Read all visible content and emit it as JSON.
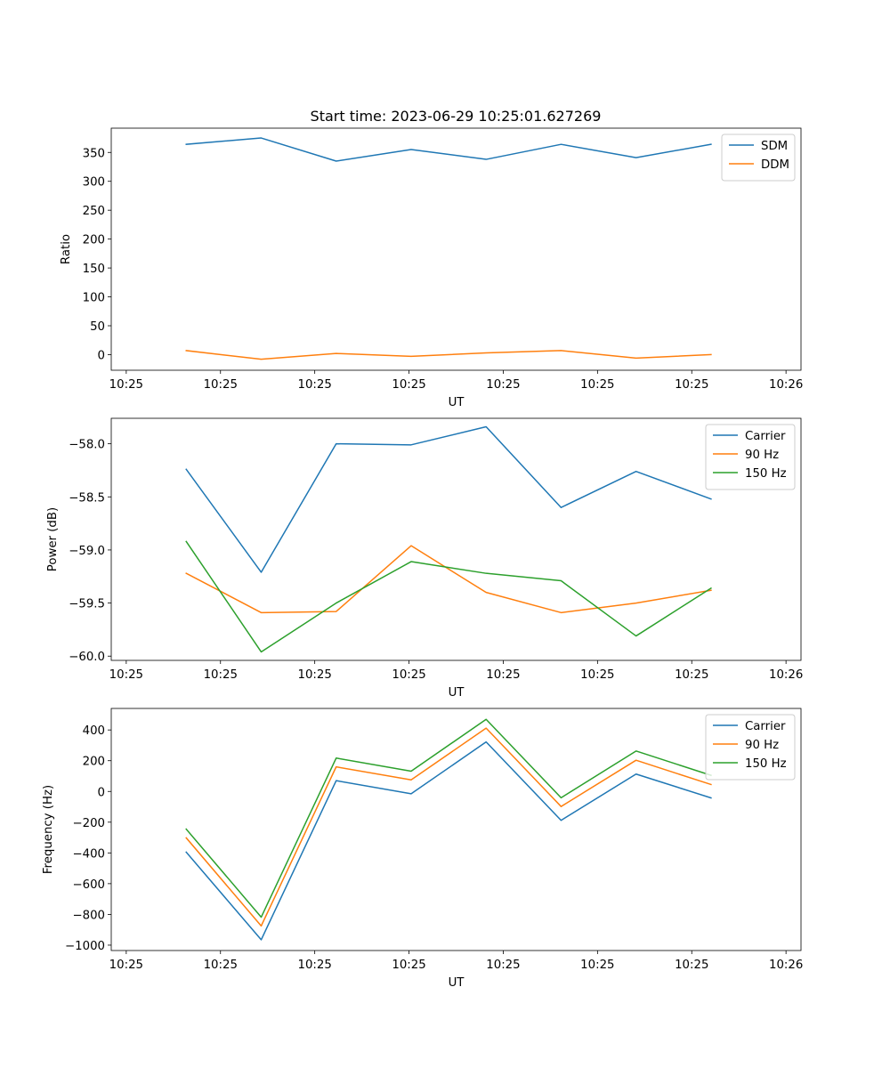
{
  "title": "Start time: 2023-06-29 10:25:01.627269",
  "colors": {
    "c0": "#1f77b4",
    "c1": "#ff7f0e",
    "c2": "#2ca02c"
  },
  "chart_data": [
    {
      "type": "line",
      "title": "Start time: 2023-06-29 10:25:01.627269",
      "xlabel": "UT",
      "ylabel": "Ratio",
      "x_tick_labels": [
        "10:25",
        "10:25",
        "10:25",
        "10:25",
        "10:25",
        "10:25",
        "10:25",
        "10:26"
      ],
      "x": [
        1,
        2,
        3,
        4,
        5,
        6,
        7,
        8
      ],
      "xlim": [
        0,
        9.2
      ],
      "ylim": [
        -27,
        392
      ],
      "yticks": [
        0,
        50,
        100,
        150,
        200,
        250,
        300,
        350
      ],
      "y_tick_labels": [
        "0",
        "50",
        "100",
        "150",
        "200",
        "250",
        "300",
        "350"
      ],
      "legend": "top-right",
      "grid": false,
      "series": [
        {
          "name": "SDM",
          "color": "#1f77b4",
          "values": [
            364,
            375,
            335,
            355,
            338,
            364,
            341,
            364
          ]
        },
        {
          "name": "DDM",
          "color": "#ff7f0e",
          "values": [
            7,
            -8,
            2,
            -3,
            3,
            7,
            -6,
            0
          ]
        }
      ]
    },
    {
      "type": "line",
      "xlabel": "UT",
      "ylabel": "Power (dB)",
      "x_tick_labels": [
        "10:25",
        "10:25",
        "10:25",
        "10:25",
        "10:25",
        "10:25",
        "10:25",
        "10:26"
      ],
      "x": [
        1,
        2,
        3,
        4,
        5,
        6,
        7,
        8
      ],
      "xlim": [
        0,
        9.2
      ],
      "ylim": [
        -60.04,
        -57.76
      ],
      "yticks": [
        -60.0,
        -59.5,
        -59.0,
        -58.5,
        -58.0
      ],
      "y_tick_labels": [
        "−60.0",
        "−59.5",
        "−59.0",
        "−58.5",
        "−58.0"
      ],
      "legend": "top-right",
      "grid": false,
      "series": [
        {
          "name": "Carrier",
          "color": "#1f77b4",
          "values": [
            -58.24,
            -59.21,
            -58.0,
            -58.01,
            -57.84,
            -58.6,
            -58.26,
            -58.52
          ]
        },
        {
          "name": "90 Hz",
          "color": "#ff7f0e",
          "values": [
            -59.22,
            -59.59,
            -59.58,
            -58.96,
            -59.4,
            -59.59,
            -59.5,
            -59.38
          ]
        },
        {
          "name": "150 Hz",
          "color": "#2ca02c",
          "values": [
            -58.92,
            -59.96,
            -59.5,
            -59.11,
            -59.22,
            -59.29,
            -59.81,
            -59.36
          ]
        }
      ]
    },
    {
      "type": "line",
      "xlabel": "UT",
      "ylabel": "Frequency (Hz)",
      "x_tick_labels": [
        "10:25",
        "10:25",
        "10:25",
        "10:25",
        "10:25",
        "10:25",
        "10:25",
        "10:26"
      ],
      "x": [
        1,
        2,
        3,
        4,
        5,
        6,
        7,
        8
      ],
      "xlim": [
        0,
        9.2
      ],
      "ylim": [
        -1035,
        540
      ],
      "yticks": [
        -1000,
        -800,
        -600,
        -400,
        -200,
        0,
        200,
        400
      ],
      "y_tick_labels": [
        "−1000",
        "−800",
        "−600",
        "−400",
        "−200",
        "0",
        "200",
        "400"
      ],
      "legend": "top-right",
      "grid": false,
      "series": [
        {
          "name": "Carrier",
          "color": "#1f77b4",
          "values": [
            -395,
            -965,
            70,
            -15,
            322,
            -188,
            113,
            -42
          ]
        },
        {
          "name": "90 Hz",
          "color": "#ff7f0e",
          "values": [
            -302,
            -875,
            160,
            75,
            412,
            -98,
            203,
            45
          ]
        },
        {
          "name": "150 Hz",
          "color": "#2ca02c",
          "values": [
            -245,
            -818,
            217,
            132,
            469,
            -41,
            263,
            105
          ]
        }
      ]
    }
  ]
}
